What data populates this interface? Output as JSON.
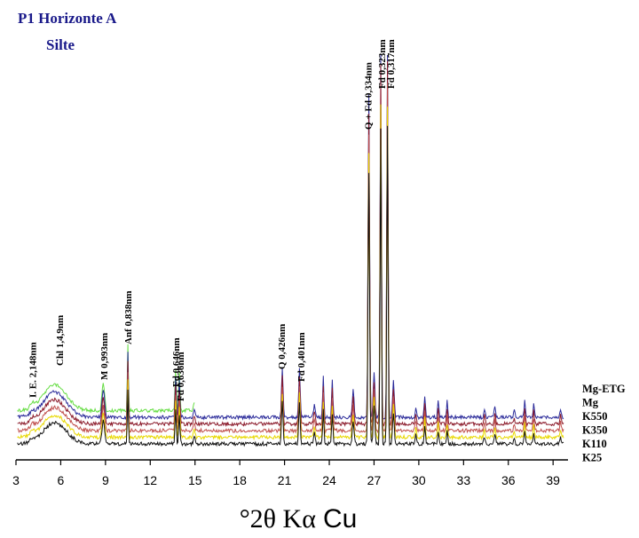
{
  "chart_data": {
    "type": "line",
    "title": "P1 Horizonte A",
    "subtitle": "Silte",
    "xlabel_symbol": "°2θ Kα",
    "xlabel_element": "Cu",
    "xlim": [
      3,
      40
    ],
    "xticks": [
      3,
      6,
      9,
      12,
      15,
      18,
      21,
      24,
      27,
      30,
      33,
      36,
      39
    ],
    "colors": {
      "Mg-ETG": "#66dd44",
      "Mg": "#2b2b9a",
      "K550": "#8b1a2a",
      "K350": "#c0504d",
      "K110": "#e8d800",
      "K25": "#111111"
    },
    "series": [
      {
        "name": "Mg-ETG",
        "label": "Mg-ETG",
        "offset": 5,
        "xmax": 15
      },
      {
        "name": "Mg",
        "label": "Mg",
        "offset": 4
      },
      {
        "name": "K550",
        "label": "K550",
        "offset": 3
      },
      {
        "name": "K350",
        "label": "K350",
        "offset": 2
      },
      {
        "name": "K110",
        "label": "K110",
        "offset": 1
      },
      {
        "name": "K25",
        "label": "K25",
        "offset": 0
      }
    ],
    "peaks": [
      {
        "x": 4.1,
        "label": "I. E.  2,148nm"
      },
      {
        "x": 5.9,
        "label": "Chl 1,4,9nm"
      },
      {
        "x": 8.9,
        "label": "M 0,993nm"
      },
      {
        "x": 10.5,
        "label": "Anf 0,838nm"
      },
      {
        "x": 13.7,
        "label": "Fd 0,646nm"
      },
      {
        "x": 14.0,
        "label": "Fd 0,636nm"
      },
      {
        "x": 20.8,
        "label": "Q 0,426nm"
      },
      {
        "x": 22.1,
        "label": "Fd 0,401nm"
      },
      {
        "x": 26.6,
        "label": "Q + Fd 0,334nm"
      },
      {
        "x": 27.5,
        "label": "Fd 0,323nm"
      },
      {
        "x": 28.1,
        "label": "Fd 0,317nm"
      }
    ]
  }
}
